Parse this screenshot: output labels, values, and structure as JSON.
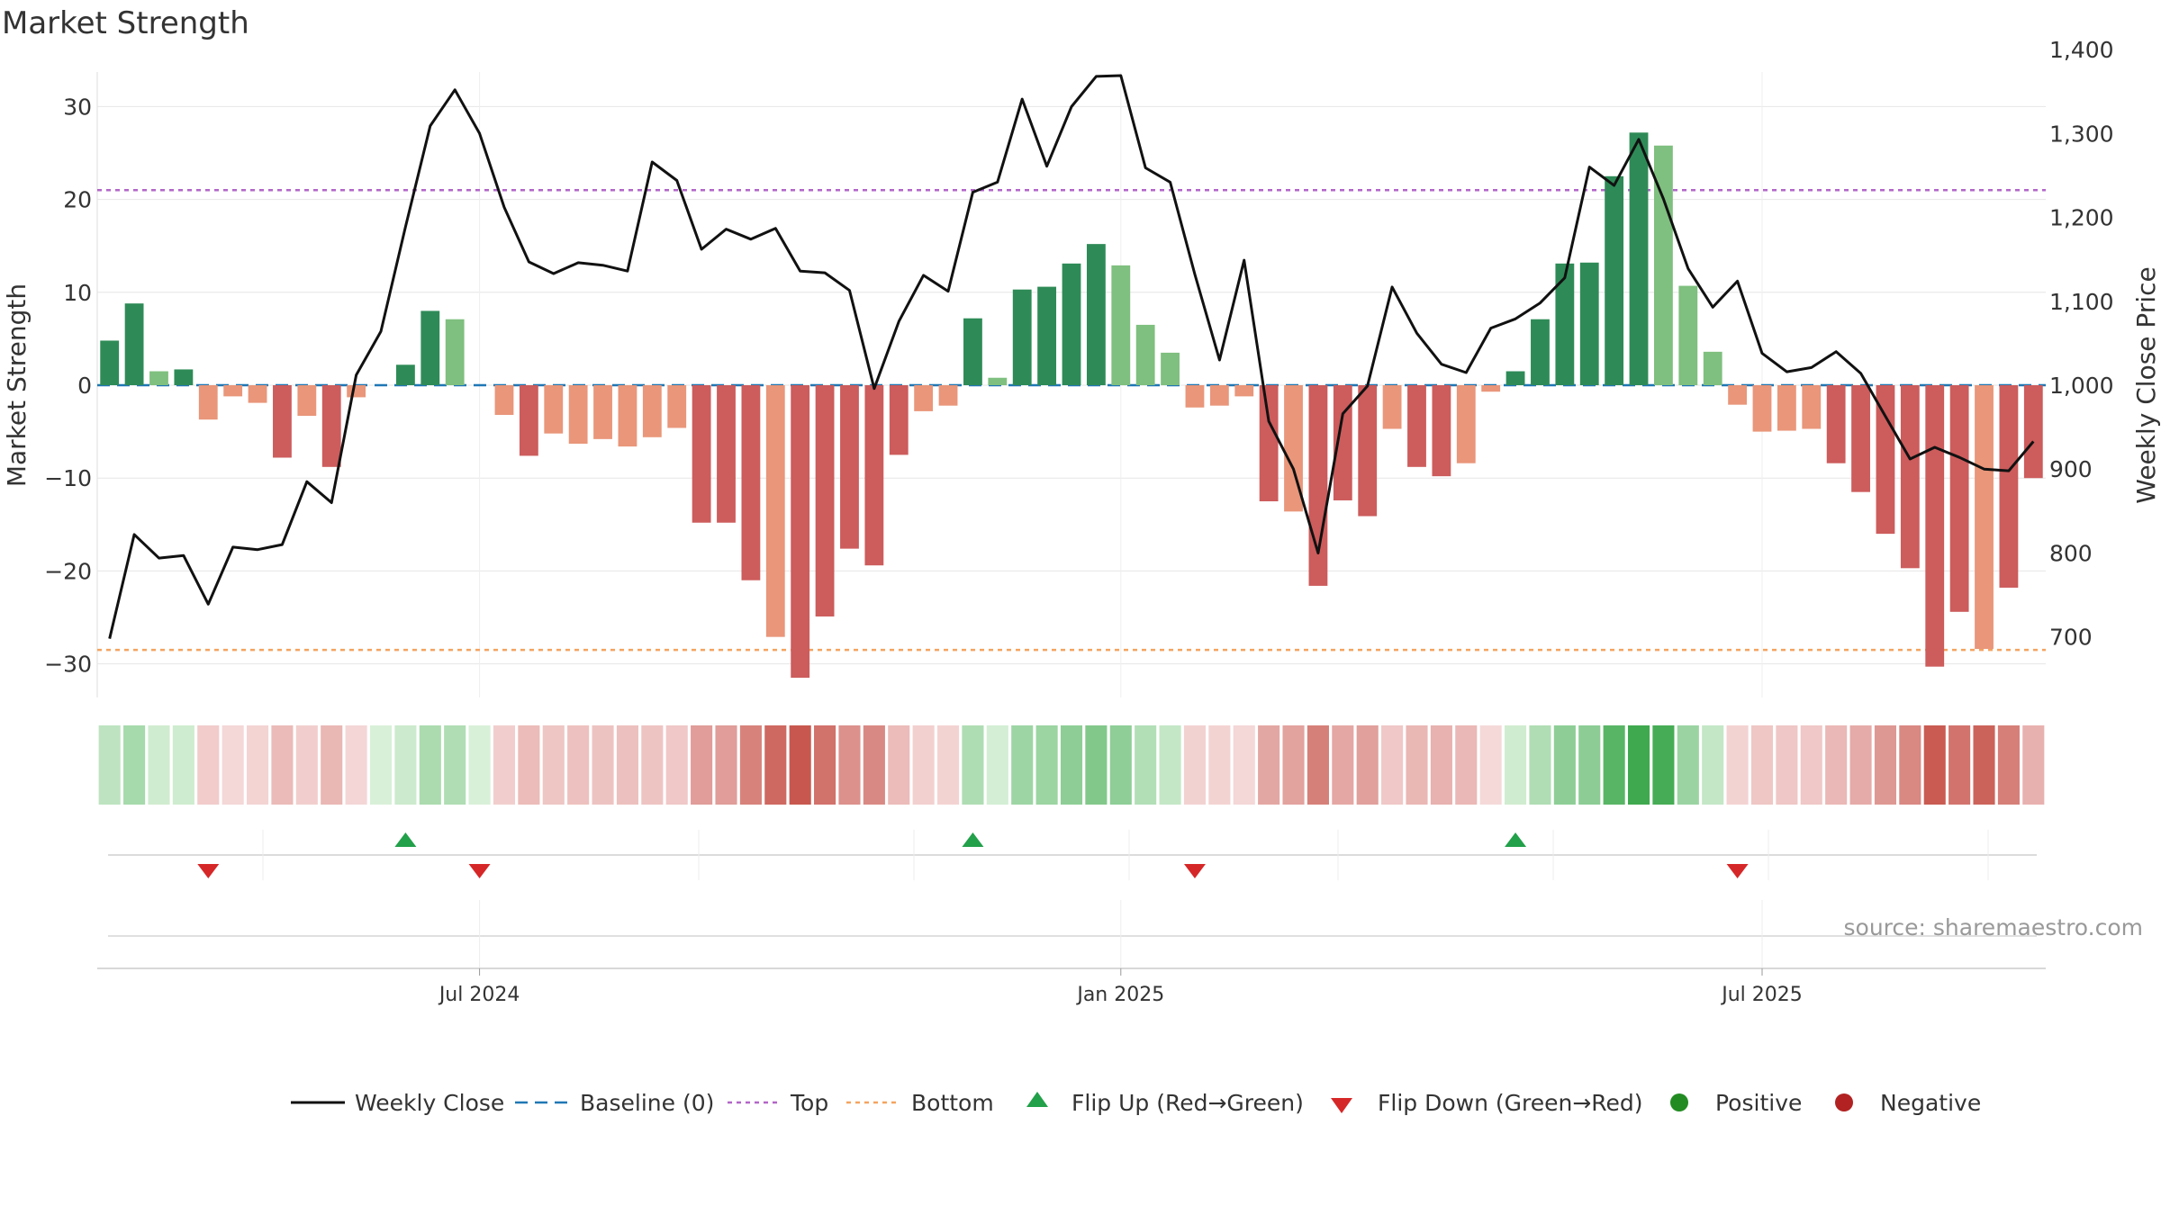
{
  "chart_data": {
    "type": "bar+line",
    "title": "Market Strength",
    "ylabel_left": "Market Strength",
    "ylabel_right": "Weekly Close Price",
    "source": "source: sharemaestro.com",
    "left_ylim": [
      -33,
      34
    ],
    "right_ylim": [
      670,
      1405
    ],
    "left_ticks": [
      30,
      20,
      10,
      0,
      -10,
      -20,
      -30
    ],
    "left_tick_labels": [
      "30",
      "20",
      "10",
      "0",
      "−10",
      "−20",
      "−30"
    ],
    "right_ticks": [
      1400,
      1300,
      1200,
      1100,
      1000,
      900,
      800,
      700
    ],
    "right_tick_labels": [
      "1,400",
      "1,300",
      "1,200",
      "1,100",
      "1,000",
      "900",
      "800",
      "700"
    ],
    "x_ticks": [
      {
        "index": 15,
        "label": "Jul 2024"
      },
      {
        "index": 41,
        "label": "Jan 2025"
      },
      {
        "index": 67,
        "label": "Jul 2025"
      }
    ],
    "top_level": 21,
    "bottom_level": -28.5,
    "strength": [
      4.8,
      8.8,
      1.5,
      1.7,
      -3.7,
      -1.2,
      -1.9,
      -7.8,
      -3.3,
      -8.8,
      -1.3,
      0,
      2.2,
      8.0,
      7.1,
      0,
      -3.2,
      -7.6,
      -5.2,
      -6.3,
      -5.8,
      -6.6,
      -5.6,
      -4.6,
      -14.8,
      -14.8,
      -21.0,
      -27.1,
      -31.5,
      -24.9,
      -17.6,
      -19.4,
      -7.5,
      -2.8,
      -2.2,
      7.2,
      0.8,
      10.3,
      10.6,
      13.1,
      15.2,
      12.9,
      6.5,
      3.5,
      -2.4,
      -2.2,
      -1.2,
      -12.5,
      -13.6,
      -21.6,
      -12.4,
      -14.1,
      -4.7,
      -8.8,
      -9.8,
      -8.4,
      -0.7,
      1.5,
      7.1,
      13.1,
      13.2,
      22.5,
      27.2,
      25.8,
      10.7,
      3.6,
      -2.1,
      -5.0,
      -4.9,
      -4.7,
      -8.4,
      -11.5,
      -16.0,
      -19.7,
      -30.3,
      -24.4,
      -28.4,
      -21.8,
      -10.0
    ],
    "weekly_close": [
      698,
      822,
      794,
      797,
      739,
      807,
      804,
      810,
      885,
      860,
      1012,
      1064,
      1189,
      1309,
      1352,
      1300,
      1212,
      1147,
      1133,
      1146,
      1143,
      1136,
      1266,
      1244,
      1162,
      1186,
      1174,
      1187,
      1136,
      1134,
      1113,
      996,
      1076,
      1131,
      1112,
      1230,
      1242,
      1341,
      1261,
      1332,
      1368,
      1369,
      1259,
      1242,
      1132,
      1030,
      1149,
      957,
      900,
      800,
      966,
      999,
      1117,
      1062,
      1025,
      1015,
      1068,
      1079,
      1098,
      1128,
      1260,
      1238,
      1293,
      1222,
      1139,
      1093,
      1124,
      1038,
      1016,
      1021,
      1040,
      1014,
      963,
      912,
      926,
      914,
      900,
      898,
      933
    ],
    "flip_up_indices": [
      12,
      35,
      57
    ],
    "flip_down_indices": [
      4,
      15,
      44,
      66
    ],
    "colors": {
      "positive_dark": "#2e8b57",
      "positive_light": "#7fbf7f",
      "negative_dark": "#cd5c5c",
      "negative_light": "#e9967a",
      "line": "#111111",
      "baseline": "#1f77b4",
      "top": "#b266c8",
      "bottom": "#f4a460",
      "flip_up": "#22a04a",
      "flip_down": "#d62728",
      "legend_positive": "#228b22",
      "legend_negative": "#b22222"
    },
    "legend": [
      "Weekly Close",
      "Baseline (0)",
      "Top",
      "Bottom",
      "Flip Up (Red→Green)",
      "Flip Down (Green→Red)",
      "Positive",
      "Negative"
    ]
  }
}
